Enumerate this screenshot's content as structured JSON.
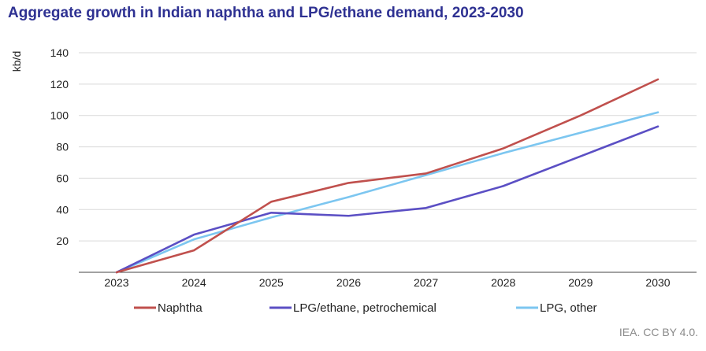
{
  "title": "Aggregate growth in Indian naphtha and LPG/ethane demand, 2023-2030",
  "credit": "IEA. CC BY 4.0.",
  "chart_data": {
    "type": "line",
    "title": "Aggregate growth in Indian naphtha and LPG/ethane demand, 2023-2030",
    "ylabel": "kb/d",
    "xlabel": "",
    "x": [
      "2023",
      "2024",
      "2025",
      "2026",
      "2027",
      "2028",
      "2029",
      "2030"
    ],
    "yticks": [
      20,
      40,
      60,
      80,
      100,
      120,
      140
    ],
    "ylim": [
      0,
      140
    ],
    "grid": "horizontal",
    "legend_position": "bottom",
    "series": [
      {
        "name": "Naphtha",
        "color": "#c0504d",
        "values": [
          0,
          14,
          45,
          57,
          63,
          79,
          100,
          123
        ]
      },
      {
        "name": "LPG/ethane, petrochemical",
        "color": "#5b4fc4",
        "values": [
          0,
          24,
          38,
          36,
          41,
          55,
          74,
          93
        ]
      },
      {
        "name": "LPG, other",
        "color": "#7cc6f0",
        "values": [
          0,
          21,
          35,
          48,
          62,
          76,
          89,
          102
        ]
      }
    ]
  }
}
